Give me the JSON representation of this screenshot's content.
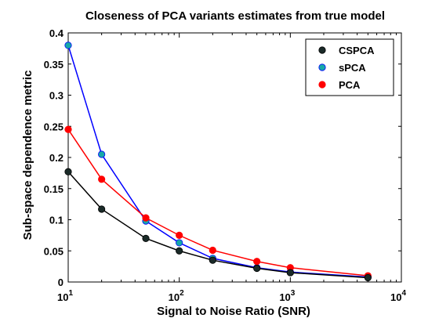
{
  "chart_data": {
    "type": "line",
    "title": "Closeness of PCA variants estimates from true model",
    "xlabel": "Signal to Noise Ratio (SNR)",
    "ylabel": "Sub-space dependence metric",
    "x_scale": "log",
    "xlim": [
      10,
      10000
    ],
    "ylim": [
      0,
      0.4
    ],
    "x_ticks": [
      {
        "base": "10",
        "exp": "1",
        "value": 10
      },
      {
        "base": "10",
        "exp": "2",
        "value": 100
      },
      {
        "base": "10",
        "exp": "3",
        "value": 1000
      },
      {
        "base": "10",
        "exp": "4",
        "value": 10000
      }
    ],
    "y_ticks": [
      "0",
      "0.05",
      "0.1",
      "0.15",
      "0.2",
      "0.25",
      "0.3",
      "0.35",
      "0.4"
    ],
    "grid": false,
    "legend_position": "top-right",
    "x": [
      10,
      20,
      50,
      100,
      200,
      500,
      1000,
      5000
    ],
    "series": [
      {
        "name": "CSPCA",
        "line_color": "#000000",
        "marker_color": "#1a2a28",
        "values": [
          0.177,
          0.117,
          0.07,
          0.05,
          0.035,
          0.022,
          0.015,
          0.007
        ]
      },
      {
        "name": "sPCA",
        "line_color": "#0000ff",
        "marker_color": "#17a8a8",
        "values": [
          0.38,
          0.205,
          0.098,
          0.063,
          0.038,
          0.023,
          0.016,
          0.008
        ]
      },
      {
        "name": "PCA",
        "line_color": "#ff0000",
        "marker_color": "#ff0000",
        "values": [
          0.245,
          0.165,
          0.103,
          0.075,
          0.051,
          0.033,
          0.023,
          0.01
        ]
      }
    ]
  }
}
